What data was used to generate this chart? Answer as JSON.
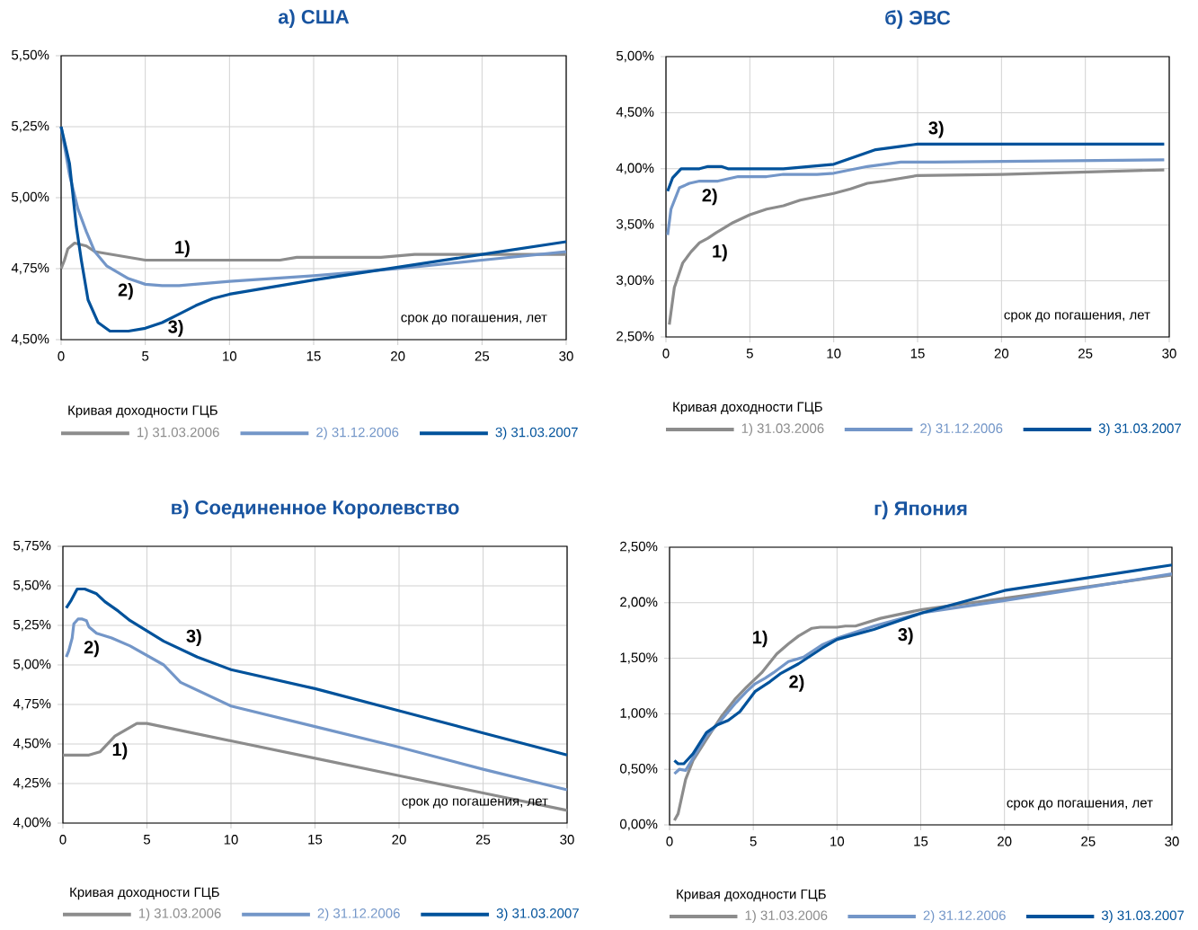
{
  "chart_data": [
    {
      "type": "line",
      "title": "а) США",
      "xlabel": "срок до погашения, лет",
      "legend_title": "Кривая доходности ГЦБ",
      "legend": "bottom",
      "grid": true,
      "xlim": [
        0,
        30
      ],
      "xticks": [
        0,
        5,
        10,
        15,
        20,
        25,
        30
      ],
      "ylim": [
        4.5,
        5.5
      ],
      "yticks": [
        {
          "value": 4.5,
          "label": "4,50%"
        },
        {
          "value": 4.75,
          "label": "4,75%"
        },
        {
          "value": 5.0,
          "label": "5,00%"
        },
        {
          "value": 5.25,
          "label": "5,25%"
        },
        {
          "value": 5.5,
          "label": "5,50%"
        }
      ],
      "annotations": [
        "1)",
        "2)",
        "3)"
      ],
      "series": [
        {
          "name": "1) 31.03.2006",
          "color": "#8c8c8c",
          "x": [
            0,
            0.2,
            0.4,
            0.8,
            1.5,
            2,
            3,
            4,
            5,
            10,
            13,
            14,
            19,
            21,
            25,
            30
          ],
          "values": [
            4.75,
            4.78,
            4.82,
            4.84,
            4.83,
            4.81,
            4.8,
            4.79,
            4.78,
            4.78,
            4.78,
            4.79,
            4.79,
            4.8,
            4.8,
            4.8
          ]
        },
        {
          "name": "2) 31.12.2006",
          "color": "#7396c8",
          "x": [
            0,
            0.5,
            1,
            1.5,
            2,
            2.7,
            4,
            5,
            6,
            7,
            10,
            15,
            20,
            25,
            30
          ],
          "values": [
            5.25,
            5.08,
            4.96,
            4.88,
            4.81,
            4.76,
            4.715,
            4.695,
            4.69,
            4.69,
            4.705,
            4.725,
            4.75,
            4.78,
            4.81
          ]
        },
        {
          "name": "3) 31.03.2007",
          "color": "#00529b",
          "x": [
            0,
            0.5,
            0.9,
            1.2,
            1.6,
            2.2,
            2.9,
            4,
            5,
            6,
            7,
            8,
            9,
            10,
            15,
            20,
            25,
            30
          ],
          "values": [
            5.25,
            5.12,
            4.9,
            4.78,
            4.64,
            4.56,
            4.53,
            4.53,
            4.54,
            4.56,
            4.59,
            4.62,
            4.645,
            4.66,
            4.71,
            4.755,
            4.8,
            4.845
          ]
        }
      ]
    },
    {
      "type": "line",
      "title": "б) ЭВС",
      "xlabel": "срок до погашения, лет",
      "legend_title": "Кривая доходности ГЦБ",
      "legend": "bottom",
      "grid": true,
      "xlim": [
        0,
        30
      ],
      "xticks": [
        0,
        5,
        10,
        15,
        20,
        25,
        30
      ],
      "ylim": [
        2.5,
        5.0
      ],
      "yticks": [
        {
          "value": 2.5,
          "label": "2,50%"
        },
        {
          "value": 3.0,
          "label": "3,00%"
        },
        {
          "value": 3.5,
          "label": "3,50%"
        },
        {
          "value": 4.0,
          "label": "4,00%"
        },
        {
          "value": 4.5,
          "label": "4,50%"
        },
        {
          "value": 5.0,
          "label": "5,00%"
        }
      ],
      "annotations": [
        "1)",
        "2)",
        "3)"
      ],
      "series": [
        {
          "name": "1) 31.03.2006",
          "color": "#8c8c8c",
          "x": [
            0.2,
            0.5,
            1,
            1.5,
            2,
            2.5,
            3,
            4,
            5,
            6,
            7,
            8,
            9,
            10,
            11,
            12,
            13,
            15,
            20,
            29.7
          ],
          "values": [
            2.61,
            2.94,
            3.16,
            3.26,
            3.34,
            3.38,
            3.43,
            3.52,
            3.59,
            3.64,
            3.67,
            3.72,
            3.75,
            3.78,
            3.82,
            3.87,
            3.89,
            3.94,
            3.95,
            3.99
          ]
        },
        {
          "name": "2) 31.12.2006",
          "color": "#7396c8",
          "x": [
            0.1,
            0.3,
            0.8,
            1.4,
            2,
            3.1,
            4.3,
            6,
            7,
            9,
            10,
            12,
            14,
            16,
            29.7
          ],
          "values": [
            3.41,
            3.64,
            3.83,
            3.87,
            3.89,
            3.89,
            3.93,
            3.93,
            3.95,
            3.95,
            3.96,
            4.02,
            4.06,
            4.06,
            4.08
          ]
        },
        {
          "name": "3) 31.03.2007",
          "color": "#00529b",
          "x": [
            0.1,
            0.4,
            0.9,
            2,
            2.5,
            3.3,
            3.7,
            7,
            10,
            12.5,
            14,
            15,
            16,
            29.7
          ],
          "values": [
            3.8,
            3.92,
            4.0,
            4.0,
            4.02,
            4.02,
            4.0,
            4.0,
            4.04,
            4.17,
            4.2,
            4.22,
            4.22,
            4.22
          ]
        }
      ]
    },
    {
      "type": "line",
      "title": "в) Соединенное Королевство",
      "xlabel": "срок до погашения, лет",
      "legend_title": "Кривая доходности ГЦБ",
      "legend": "bottom",
      "grid": true,
      "xlim": [
        0,
        30
      ],
      "xticks": [
        0,
        5,
        10,
        15,
        20,
        25,
        30
      ],
      "ylim": [
        4.0,
        5.75
      ],
      "yticks": [
        {
          "value": 4.0,
          "label": "4,00%"
        },
        {
          "value": 4.25,
          "label": "4,25%"
        },
        {
          "value": 4.5,
          "label": "4,50%"
        },
        {
          "value": 4.75,
          "label": "4,75%"
        },
        {
          "value": 5.0,
          "label": "5,00%"
        },
        {
          "value": 5.25,
          "label": "5,25%"
        },
        {
          "value": 5.5,
          "label": "5,50%"
        },
        {
          "value": 5.75,
          "label": "5,75%"
        }
      ],
      "annotations": [
        "1)",
        "2)",
        "3)"
      ],
      "series": [
        {
          "name": "1) 31.03.2006",
          "color": "#8c8c8c",
          "x": [
            0,
            1.55,
            2.2,
            3.1,
            4.4,
            5,
            10,
            15,
            20,
            25,
            30
          ],
          "values": [
            4.43,
            4.43,
            4.45,
            4.55,
            4.63,
            4.63,
            4.52,
            4.41,
            4.3,
            4.19,
            4.08
          ]
        },
        {
          "name": "2) 31.12.2006",
          "color": "#7396c8",
          "x": [
            0.2,
            0.35,
            0.55,
            0.65,
            0.9,
            1.15,
            1.4,
            1.55,
            2,
            2.9,
            4,
            6,
            7,
            10,
            15,
            20,
            25,
            30
          ],
          "values": [
            5.05,
            5.09,
            5.17,
            5.26,
            5.29,
            5.29,
            5.28,
            5.24,
            5.2,
            5.17,
            5.12,
            5.0,
            4.89,
            4.74,
            4.61,
            4.48,
            4.34,
            4.21
          ]
        },
        {
          "name": "3) 31.03.2007",
          "color": "#00529b",
          "x": [
            0.2,
            0.5,
            0.85,
            1.3,
            2,
            2.5,
            3.3,
            4,
            6,
            8,
            10,
            15,
            20,
            25,
            30
          ],
          "values": [
            5.36,
            5.41,
            5.48,
            5.48,
            5.45,
            5.4,
            5.34,
            5.28,
            5.15,
            5.05,
            4.97,
            4.85,
            4.71,
            4.57,
            4.43
          ]
        }
      ]
    },
    {
      "type": "line",
      "title": "г) Япония",
      "xlabel": "срок до погашения, лет",
      "legend_title": "Кривая доходности ГЦБ",
      "legend": "bottom",
      "grid": true,
      "xlim": [
        0,
        30
      ],
      "xticks": [
        0,
        5,
        10,
        15,
        20,
        25,
        30
      ],
      "ylim": [
        0,
        2.5
      ],
      "yticks": [
        {
          "value": 0,
          "label": "0,00%"
        },
        {
          "value": 0.5,
          "label": "0,50%"
        },
        {
          "value": 1.0,
          "label": "1,00%"
        },
        {
          "value": 1.5,
          "label": "1,50%"
        },
        {
          "value": 2.0,
          "label": "2,00%"
        },
        {
          "value": 2.5,
          "label": "2,50%"
        }
      ],
      "annotations": [
        "1)",
        "2)",
        "3)"
      ],
      "series": [
        {
          "name": "1) 31.03.2006",
          "color": "#8c8c8c",
          "x": [
            0.29,
            0.51,
            0.96,
            1.4,
            2.2,
            3.07,
            3.96,
            4.6,
            5.5,
            6.4,
            7.1,
            7.7,
            8.5,
            9,
            10,
            10.5,
            11.1,
            12.6,
            15.1,
            20,
            30
          ],
          "values": [
            0.04,
            0.1,
            0.41,
            0.58,
            0.77,
            0.97,
            1.14,
            1.24,
            1.37,
            1.54,
            1.63,
            1.7,
            1.77,
            1.78,
            1.78,
            1.79,
            1.79,
            1.86,
            1.94,
            2.04,
            2.25
          ]
        },
        {
          "name": "2) 31.12.2006",
          "color": "#7396c8",
          "x": [
            0.29,
            0.58,
            0.96,
            1.4,
            2.2,
            3.07,
            3.96,
            4.6,
            5.1,
            5.7,
            6.2,
            7.1,
            8.0,
            9.1,
            10,
            12.2,
            15.1,
            20,
            30
          ],
          "values": [
            0.46,
            0.5,
            0.49,
            0.6,
            0.8,
            0.94,
            1.1,
            1.2,
            1.27,
            1.32,
            1.37,
            1.47,
            1.51,
            1.62,
            1.68,
            1.79,
            1.91,
            2.02,
            2.26
          ]
        },
        {
          "name": "3) 31.03.2007",
          "color": "#00529b",
          "x": [
            0.29,
            0.51,
            0.85,
            1.4,
            2.2,
            2.85,
            3.5,
            4.2,
            5.1,
            6.0,
            6.6,
            7.7,
            9.1,
            10,
            12.2,
            15.1,
            20,
            30
          ],
          "values": [
            0.58,
            0.55,
            0.55,
            0.64,
            0.83,
            0.9,
            0.94,
            1.02,
            1.2,
            1.29,
            1.36,
            1.45,
            1.59,
            1.67,
            1.76,
            1.91,
            2.11,
            2.34
          ]
        }
      ]
    }
  ]
}
